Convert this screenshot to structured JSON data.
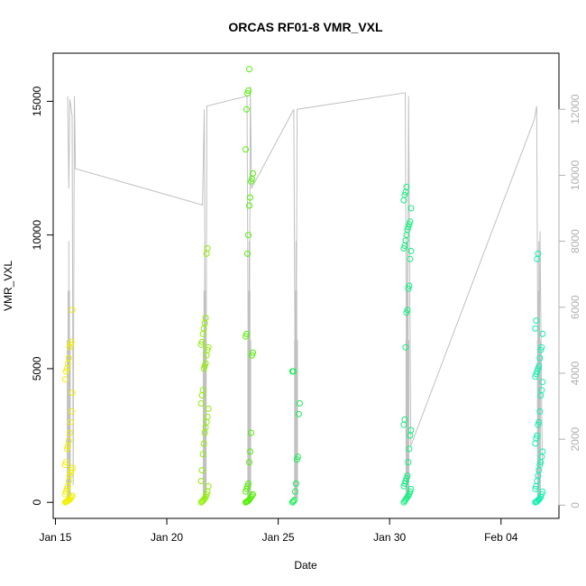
{
  "chart_data": {
    "type": "scatter",
    "title": "ORCAS RF01-8 VMR_VXL",
    "xlabel": "Date",
    "ylabel": "VMR_VXL",
    "x_ticks": [
      "Jan 15",
      "Jan 20",
      "Jan 25",
      "Jan 30",
      "Feb 04"
    ],
    "x_tick_days": [
      15,
      20,
      25,
      30,
      35
    ],
    "xlim_days": [
      14.9,
      37.6
    ],
    "y_ticks": [
      0,
      5000,
      10000,
      15000
    ],
    "ylim": [
      -600,
      16800
    ],
    "y2_ticks": [
      0,
      2000,
      4000,
      6000,
      8000,
      10000,
      12000
    ],
    "y2lim": [
      -400,
      13700
    ],
    "grid": false,
    "legend": "none",
    "colors": {
      "line": "#c0c0c0",
      "right_axis": "#b0b0b0",
      "flight_1": "#f0f000",
      "flight_2": "#90f000",
      "flight_3": "#50f000",
      "flight_4": "#10f050",
      "flight_5": "#10f080",
      "flight_6": "#10f0b0"
    },
    "series": [
      {
        "flight_day": 15.6,
        "color_key": "flight_1",
        "values": [
          0,
          20,
          40,
          60,
          80,
          100,
          150,
          200,
          250,
          300,
          400,
          500,
          600,
          800,
          1000,
          1100,
          1200,
          1300,
          1400,
          1500,
          2000,
          2100,
          2300,
          2600,
          3000,
          3400,
          4100,
          4600,
          4900,
          5000,
          5200,
          5400,
          5800,
          5900,
          6000,
          7200
        ]
      },
      {
        "flight_day": 21.7,
        "color_key": "flight_2",
        "values": [
          0,
          30,
          60,
          100,
          150,
          200,
          300,
          400,
          600,
          800,
          1200,
          1800,
          2200,
          2600,
          2800,
          3000,
          3200,
          3500,
          3700,
          4000,
          4200,
          5000,
          5100,
          5200,
          5500,
          5700,
          5800,
          5900,
          6000,
          6300,
          6500,
          6700,
          6900,
          9300,
          9500
        ]
      },
      {
        "flight_day": 23.7,
        "color_key": "flight_3",
        "values": [
          0,
          20,
          40,
          60,
          100,
          150,
          200,
          250,
          300,
          400,
          500,
          600,
          700,
          1500,
          1900,
          2600,
          5500,
          5600,
          6200,
          6300,
          9300,
          10000,
          11100,
          11400,
          12000,
          12100,
          12300,
          13200,
          14700,
          15300,
          15400,
          16200
        ]
      },
      {
        "flight_day": 25.8,
        "color_key": "flight_4",
        "values": [
          0,
          40,
          80,
          400,
          700,
          1600,
          1700,
          3300,
          3700,
          4900,
          4900
        ]
      },
      {
        "flight_day": 30.8,
        "color_key": "flight_5",
        "values": [
          0,
          50,
          100,
          150,
          200,
          250,
          300,
          400,
          500,
          600,
          700,
          800,
          900,
          1000,
          1500,
          2000,
          2500,
          2700,
          2900,
          3100,
          5800,
          7100,
          7200,
          8000,
          8100,
          9100,
          9400,
          9500,
          9600,
          9800,
          10000,
          10200,
          10300,
          10400,
          10500,
          11000,
          11300,
          11500,
          11600,
          11800
        ]
      },
      {
        "flight_day": 36.7,
        "color_key": "flight_6",
        "values": [
          0,
          20,
          40,
          80,
          100,
          150,
          200,
          300,
          400,
          500,
          600,
          800,
          1000,
          1200,
          1400,
          1500,
          1700,
          1900,
          2200,
          2400,
          2500,
          2900,
          3000,
          3400,
          4000,
          4200,
          4500,
          4700,
          4800,
          4900,
          5000,
          5100,
          5400,
          5700,
          5800,
          6300,
          6500,
          6800,
          9100,
          9300
        ]
      }
    ],
    "right_axis_line": [
      [
        15.55,
        12400
      ],
      [
        15.6,
        9600
      ],
      [
        15.65,
        12300
      ],
      [
        15.75,
        11800
      ],
      [
        15.8,
        600
      ],
      [
        15.85,
        12400
      ],
      [
        15.9,
        10200
      ],
      [
        21.6,
        9100
      ],
      [
        21.68,
        12000
      ],
      [
        21.75,
        200
      ],
      [
        21.8,
        12100
      ],
      [
        23.6,
        12400
      ],
      [
        23.68,
        200
      ],
      [
        23.75,
        12700
      ],
      [
        23.8,
        9600
      ],
      [
        25.7,
        12000
      ],
      [
        25.78,
        300
      ],
      [
        25.85,
        12000
      ],
      [
        30.7,
        12500
      ],
      [
        30.78,
        200
      ],
      [
        30.85,
        12400
      ],
      [
        30.95,
        1800
      ],
      [
        36.5,
        11700
      ],
      [
        36.6,
        12100
      ],
      [
        36.68,
        300
      ],
      [
        36.75,
        8300
      ],
      [
        36.85,
        1200
      ]
    ]
  }
}
